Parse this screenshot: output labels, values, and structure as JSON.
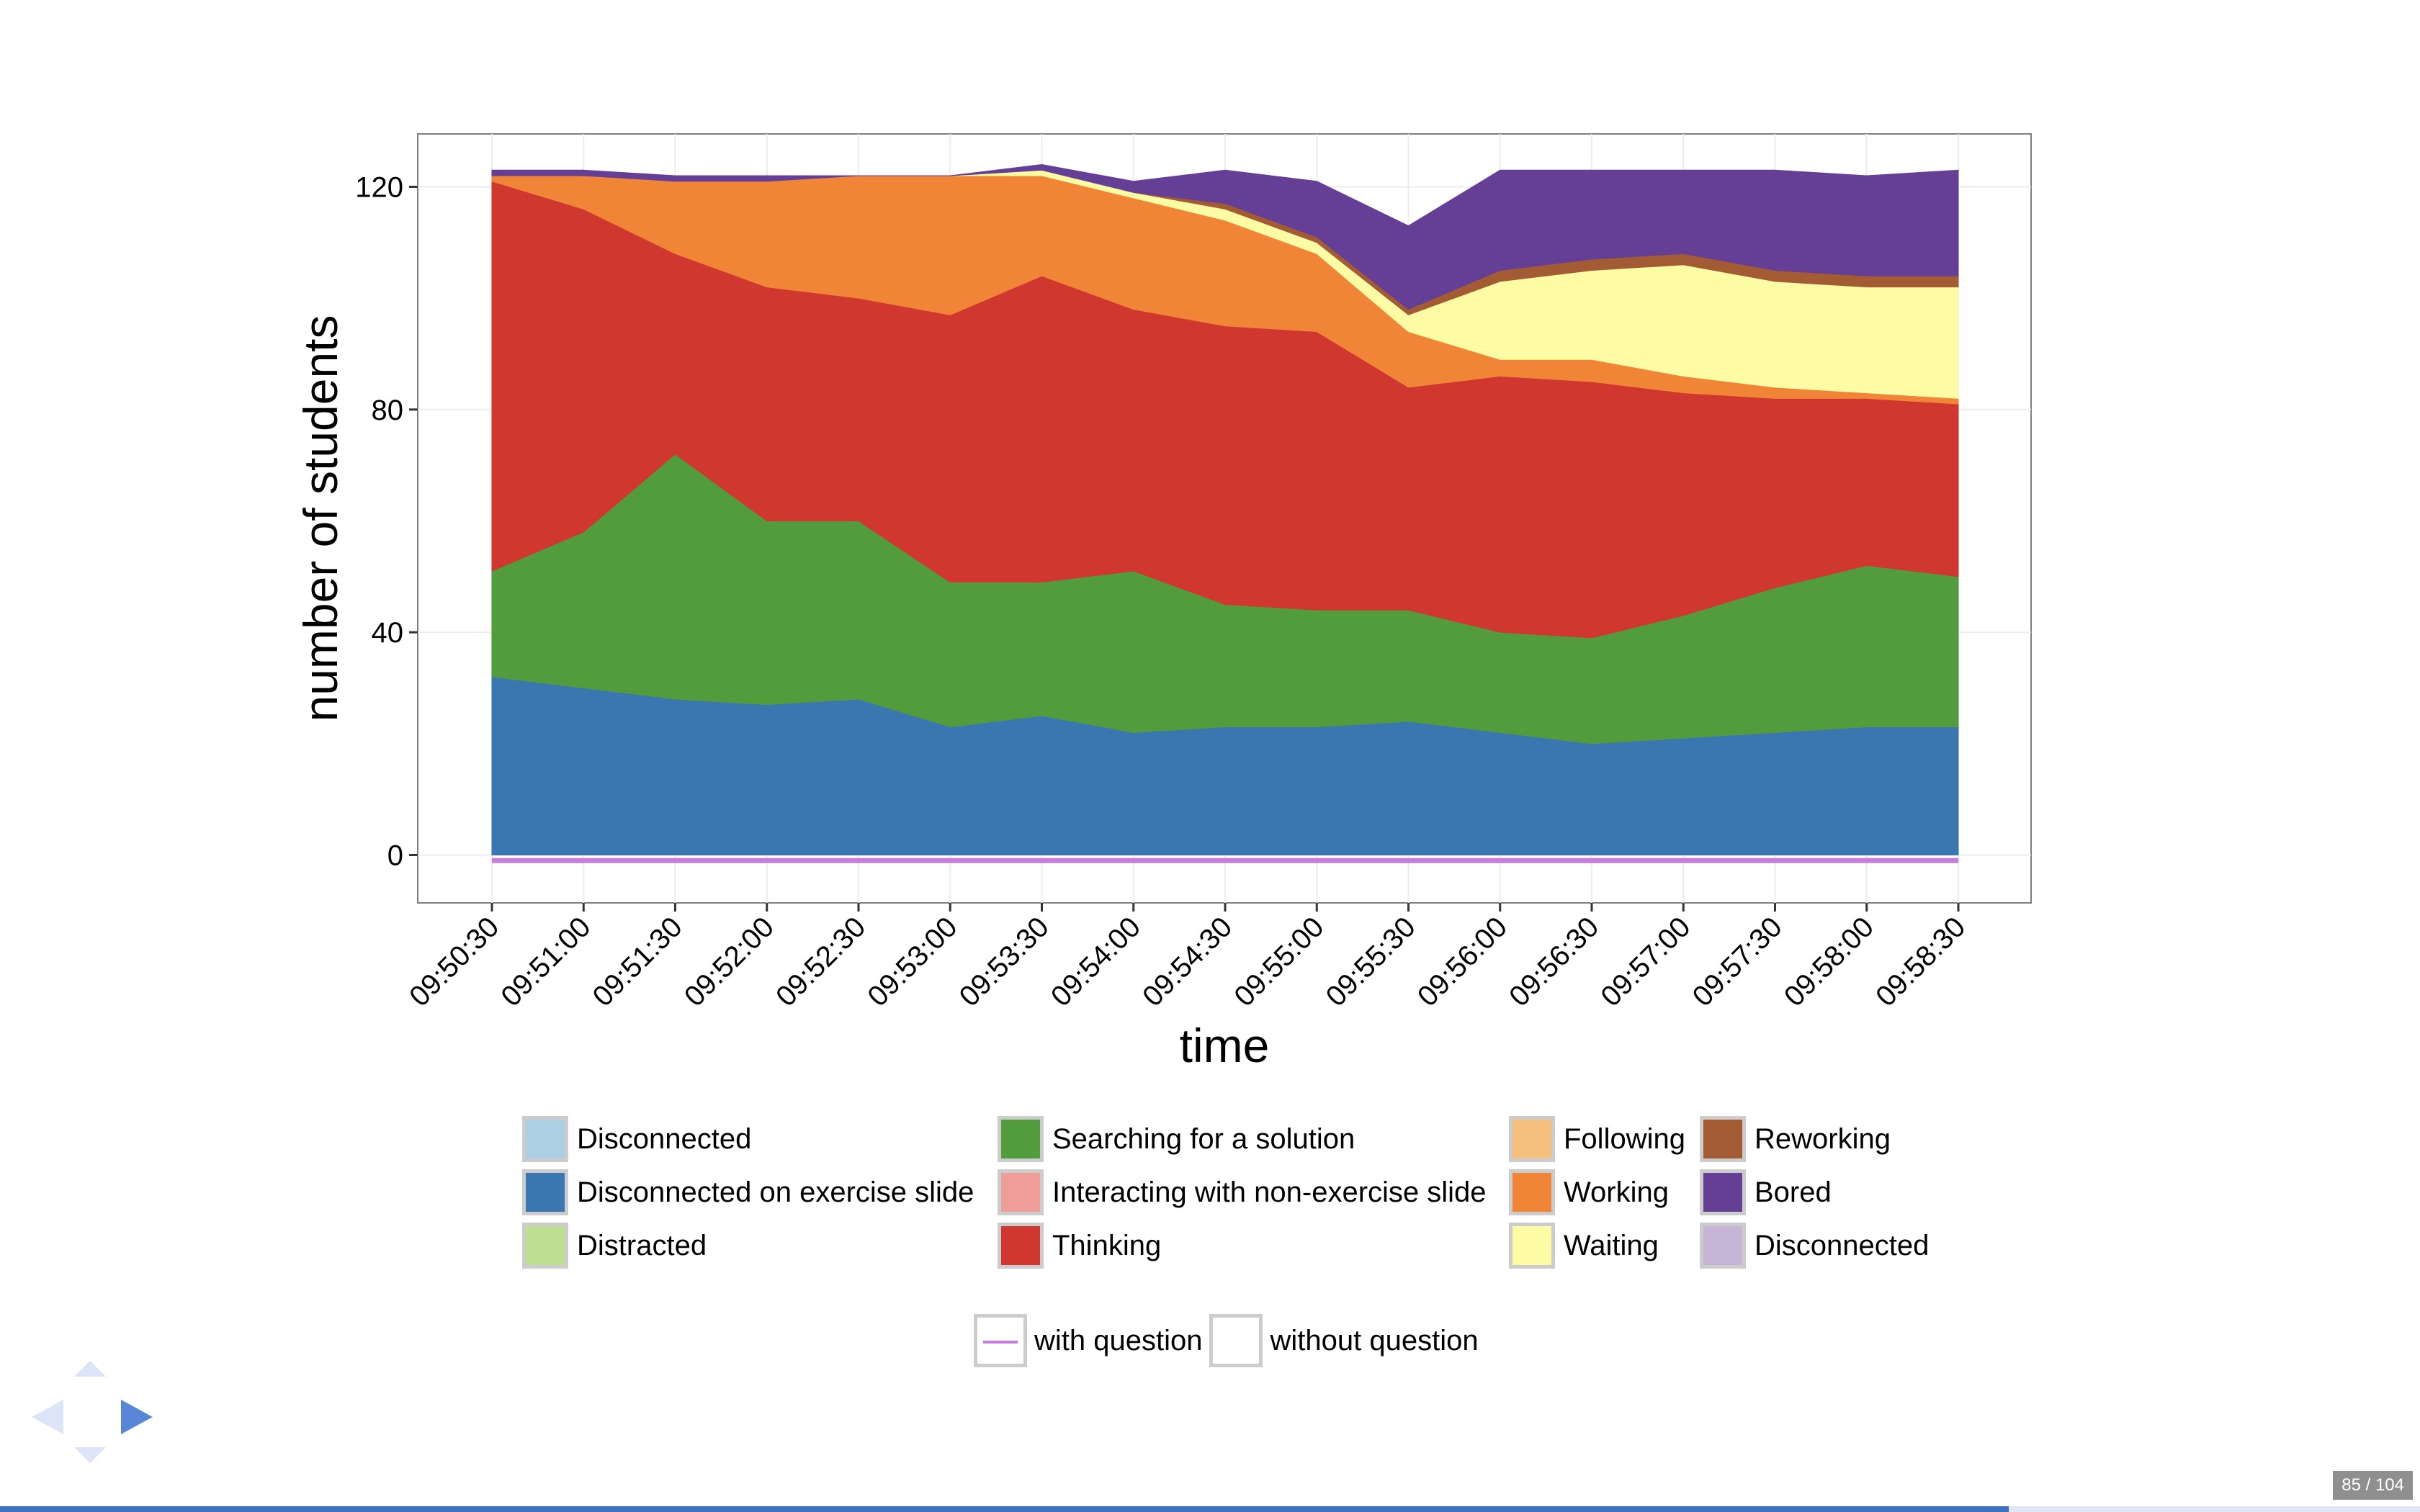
{
  "chart_data": {
    "type": "area",
    "stacked": true,
    "xlabel": "time",
    "ylabel": "number of students",
    "ylim": [
      0,
      127
    ],
    "yticks": [
      0,
      40,
      80,
      120
    ],
    "xticks": [
      "09:50:30",
      "09:51:00",
      "09:51:30",
      "09:52:00",
      "09:52:30",
      "09:53:00",
      "09:53:30",
      "09:54:00",
      "09:54:30",
      "09:55:00",
      "09:55:30",
      "09:56:00",
      "09:56:30",
      "09:57:00",
      "09:57:30",
      "09:58:00",
      "09:58:30"
    ],
    "x": [
      "09:50:30",
      "09:51:00",
      "09:51:30",
      "09:52:00",
      "09:52:30",
      "09:53:00",
      "09:53:30",
      "09:54:00",
      "09:54:30",
      "09:55:00",
      "09:55:30",
      "09:56:00",
      "09:56:30",
      "09:57:00",
      "09:57:30",
      "09:58:00",
      "09:58:30"
    ],
    "grid": true,
    "series": [
      {
        "name": "Disconnected on exercise slide",
        "color": "#3a76af",
        "values": [
          32,
          30,
          28,
          27,
          28,
          23,
          25,
          22,
          23,
          23,
          24,
          22,
          20,
          21,
          22,
          23,
          23
        ]
      },
      {
        "name": "Searching for a solution",
        "color": "#539c3e",
        "values": [
          19,
          28,
          44,
          33,
          32,
          26,
          24,
          29,
          22,
          21,
          20,
          18,
          19,
          22,
          26,
          29,
          27
        ]
      },
      {
        "name": "Thinking",
        "color": "#d0372e",
        "values": [
          70,
          58,
          36,
          42,
          40,
          48,
          55,
          47,
          50,
          50,
          40,
          46,
          46,
          40,
          34,
          30,
          31
        ]
      },
      {
        "name": "Working",
        "color": "#f08537",
        "values": [
          1,
          6,
          13,
          19,
          22,
          25,
          18,
          20,
          19,
          14,
          10,
          3,
          4,
          3,
          2,
          1,
          1
        ]
      },
      {
        "name": "Waiting",
        "color": "#fdfca4",
        "values": [
          0,
          0,
          0,
          0,
          0,
          0,
          1,
          1,
          2,
          2,
          3,
          14,
          16,
          20,
          19,
          19,
          20
        ]
      },
      {
        "name": "Reworking",
        "color": "#a25b33",
        "values": [
          0,
          0,
          0,
          0,
          0,
          0,
          0,
          0,
          1,
          1,
          1,
          2,
          2,
          2,
          2,
          2,
          2
        ]
      },
      {
        "name": "Bored",
        "color": "#653e95",
        "values": [
          1,
          1,
          1,
          1,
          0,
          0,
          1,
          2,
          6,
          10,
          15,
          18,
          16,
          15,
          18,
          18,
          19
        ]
      }
    ],
    "legend": [
      {
        "label": "Disconnected",
        "color": "#abcfe3"
      },
      {
        "label": "Disconnected on exercise slide",
        "color": "#3a76af"
      },
      {
        "label": "Distracted",
        "color": "#bedf92"
      },
      {
        "label": "Searching for a solution",
        "color": "#539c3e"
      },
      {
        "label": "Interacting with non-exercise slide",
        "color": "#f09d9a"
      },
      {
        "label": "Thinking",
        "color": "#d0372e"
      },
      {
        "label": "Following",
        "color": "#f5c07d"
      },
      {
        "label": "Working",
        "color": "#f08537"
      },
      {
        "label": "Waiting",
        "color": "#fdfca4"
      },
      {
        "label": "Reworking",
        "color": "#a25b33"
      },
      {
        "label": "Bored",
        "color": "#653e95"
      },
      {
        "label": "Disconnected",
        "color": "#c6b4d7"
      }
    ],
    "line_legend": [
      {
        "label": "with question",
        "color": "#c77cde"
      },
      {
        "label": "without question",
        "color": ""
      }
    ]
  },
  "navigation": {
    "counter": "85 / 104",
    "progress": 0.83,
    "arrow_color": "#5a86d8",
    "arrow_faded_color": "#dbe5f6"
  }
}
